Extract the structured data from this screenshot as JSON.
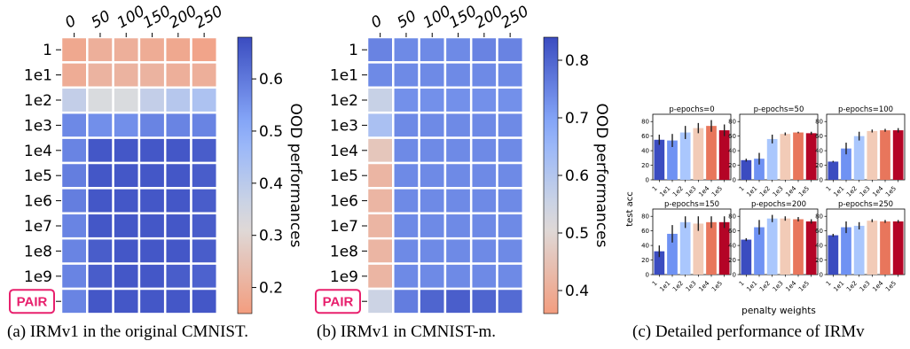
{
  "heatmaps": [
    {
      "caption": "(a) IRMv1 in the original CMNIST.",
      "colorbar_label": "OOD performances",
      "colorbar_ticks": [
        "0.2",
        "0.3",
        "0.4",
        "0.5",
        "0.6"
      ],
      "colorbar_range": [
        0.15,
        0.68
      ],
      "x_tick_labels": [
        "0",
        "50",
        "100",
        "150",
        "200",
        "250"
      ],
      "y_tick_labels": [
        "1",
        "1e1",
        "1e2",
        "1e3",
        "1e4",
        "1e5",
        "1e6",
        "1e7",
        "1e8",
        "1e9",
        "PAIR"
      ],
      "highlight_label": "PAIR",
      "values": [
        [
          0.18,
          0.2,
          0.2,
          0.19,
          0.18,
          0.17
        ],
        [
          0.19,
          0.21,
          0.21,
          0.21,
          0.2,
          0.2
        ],
        [
          0.38,
          0.33,
          0.33,
          0.38,
          0.41,
          0.43
        ],
        [
          0.57,
          0.56,
          0.56,
          0.58,
          0.58,
          0.58
        ],
        [
          0.58,
          0.66,
          0.66,
          0.66,
          0.66,
          0.65
        ],
        [
          0.59,
          0.66,
          0.66,
          0.66,
          0.66,
          0.65
        ],
        [
          0.59,
          0.66,
          0.66,
          0.66,
          0.66,
          0.65
        ],
        [
          0.58,
          0.66,
          0.66,
          0.66,
          0.66,
          0.65
        ],
        [
          0.58,
          0.65,
          0.66,
          0.66,
          0.66,
          0.65
        ],
        [
          0.58,
          0.65,
          0.66,
          0.66,
          0.65,
          0.64
        ],
        [
          0.58,
          0.66,
          0.66,
          0.66,
          0.66,
          0.66
        ]
      ]
    },
    {
      "caption": "(b) IRMv1 in CMNIST-m.",
      "colorbar_label": "OOD performances",
      "colorbar_ticks": [
        "0.4",
        "0.5",
        "0.6",
        "0.7",
        "0.8"
      ],
      "colorbar_range": [
        0.36,
        0.84
      ],
      "x_tick_labels": [
        "0",
        "50",
        "100",
        "150",
        "200",
        "250"
      ],
      "y_tick_labels": [
        "1",
        "1e1",
        "1e2",
        "1e3",
        "1e4",
        "1e5",
        "1e6",
        "1e7",
        "1e8",
        "1e9",
        "PAIR"
      ],
      "highlight_label": "PAIR",
      "values": [
        [
          0.75,
          0.74,
          0.74,
          0.74,
          0.75,
          0.75
        ],
        [
          0.74,
          0.74,
          0.74,
          0.74,
          0.74,
          0.74
        ],
        [
          0.56,
          0.73,
          0.73,
          0.73,
          0.73,
          0.73
        ],
        [
          0.62,
          0.74,
          0.74,
          0.74,
          0.74,
          0.74
        ],
        [
          0.46,
          0.74,
          0.74,
          0.74,
          0.74,
          0.74
        ],
        [
          0.42,
          0.74,
          0.74,
          0.74,
          0.74,
          0.74
        ],
        [
          0.42,
          0.74,
          0.74,
          0.74,
          0.74,
          0.74
        ],
        [
          0.42,
          0.74,
          0.74,
          0.74,
          0.74,
          0.74
        ],
        [
          0.42,
          0.74,
          0.74,
          0.74,
          0.74,
          0.74
        ],
        [
          0.42,
          0.74,
          0.74,
          0.74,
          0.74,
          0.74
        ],
        [
          0.55,
          0.76,
          0.8,
          0.81,
          0.8,
          0.79
        ]
      ]
    }
  ],
  "bars_panel": {
    "caption": "(c) Detailed performance of IRMv",
    "ylabel": "test acc",
    "xlabel": "penalty weights",
    "categories": [
      "1",
      "1e1",
      "1e2",
      "1e3",
      "1e4",
      "1e5"
    ],
    "y_ticks": [
      "0",
      "20",
      "40",
      "60",
      "80"
    ],
    "ylim": [
      0,
      90
    ],
    "bar_colors": [
      "#3b4cc0",
      "#6f92f3",
      "#aac7fd",
      "#f2cbb7",
      "#e8765c",
      "#b40426"
    ],
    "subplots": [
      {
        "title": "p-epochs=0",
        "values": [
          55,
          54,
          65,
          71,
          74,
          68
        ],
        "errors": [
          7,
          9,
          9,
          7,
          8,
          8
        ]
      },
      {
        "title": "p-epochs=50",
        "values": [
          27,
          29,
          56,
          63,
          65,
          64
        ],
        "errors": [
          2,
          8,
          6,
          2,
          1,
          2
        ]
      },
      {
        "title": "p-epochs=100",
        "values": [
          25,
          43,
          60,
          67,
          68,
          68
        ],
        "errors": [
          1,
          8,
          6,
          2,
          2,
          3
        ]
      },
      {
        "title": "p-epochs=150",
        "values": [
          32,
          56,
          72,
          70,
          72,
          72
        ],
        "errors": [
          8,
          12,
          8,
          10,
          8,
          8
        ]
      },
      {
        "title": "p-epochs=200",
        "values": [
          48,
          65,
          77,
          77,
          76,
          73
        ],
        "errors": [
          2,
          10,
          5,
          3,
          3,
          3
        ]
      },
      {
        "title": "p-epochs=250",
        "values": [
          54,
          65,
          67,
          74,
          73,
          73
        ],
        "errors": [
          2,
          8,
          5,
          2,
          2,
          2
        ]
      }
    ]
  }
}
